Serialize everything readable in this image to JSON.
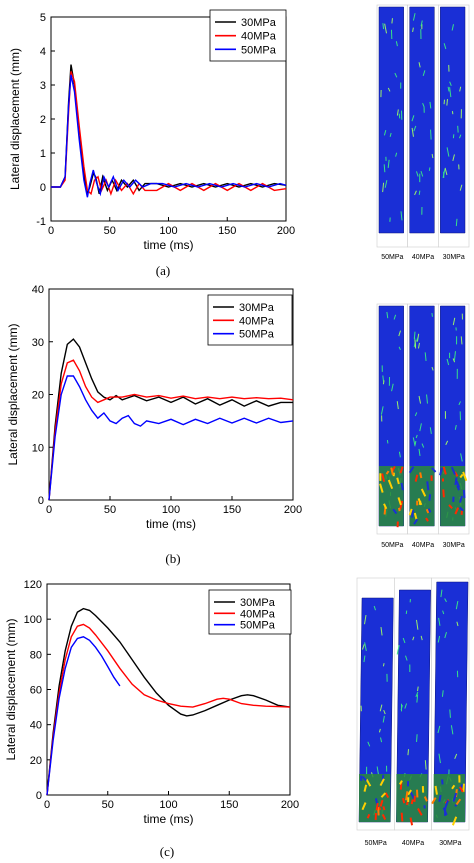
{
  "chart_data": [
    {
      "type": "line",
      "caption": "(a)",
      "xlabel": "time (ms)",
      "ylabel": "Lateral displacement (mm)",
      "xlim": [
        0,
        200
      ],
      "ylim": [
        -1,
        5
      ],
      "xticks": [
        "0",
        "50",
        "100",
        "150",
        "200"
      ],
      "yticks": [
        "-1",
        "0",
        "1",
        "2",
        "3",
        "4",
        "5"
      ],
      "legend_position": "top-right",
      "series": [
        {
          "name": "30MPa",
          "color": "#000000",
          "x": [
            0,
            8,
            12,
            15,
            17,
            20,
            24,
            28,
            31,
            33,
            36,
            38,
            41,
            44,
            48,
            52,
            56,
            60,
            65,
            70,
            75,
            80,
            90,
            100,
            110,
            120,
            130,
            140,
            150,
            160,
            170,
            180,
            190,
            200
          ],
          "y": [
            0,
            0,
            0.3,
            2.5,
            3.6,
            3.0,
            1.5,
            0.4,
            -0.2,
            0.0,
            0.4,
            0.3,
            -0.2,
            0.3,
            -0.1,
            0.2,
            -0.1,
            0.2,
            0.0,
            0.2,
            -0.1,
            0.1,
            0.1,
            0.0,
            0.1,
            0.0,
            0.1,
            0.0,
            0.1,
            0.0,
            0.1,
            0.0,
            0.1,
            0.05
          ]
        },
        {
          "name": "40MPa",
          "color": "#ff0000",
          "x": [
            0,
            8,
            12,
            15,
            17,
            20,
            24,
            28,
            31,
            34,
            37,
            40,
            43,
            47,
            51,
            55,
            60,
            65,
            70,
            75,
            80,
            90,
            100,
            110,
            120,
            130,
            140,
            150,
            160,
            170,
            180,
            190,
            200
          ],
          "y": [
            0,
            0,
            0.2,
            2.2,
            3.4,
            3.1,
            1.8,
            0.6,
            -0.1,
            -0.2,
            0.2,
            0.3,
            -0.1,
            0.2,
            -0.2,
            0.2,
            -0.1,
            0.1,
            -0.2,
            0.1,
            -0.1,
            -0.1,
            0.1,
            -0.1,
            0.1,
            -0.1,
            0.1,
            -0.1,
            0.1,
            -0.1,
            0.1,
            -0.1,
            -0.05
          ]
        },
        {
          "name": "50MPa",
          "color": "#0000ff",
          "x": [
            0,
            8,
            12,
            15,
            17,
            20,
            24,
            28,
            31,
            33,
            36,
            39,
            42,
            45,
            49,
            53,
            57,
            62,
            67,
            72,
            78,
            85,
            95,
            105,
            115,
            125,
            135,
            145,
            155,
            165,
            175,
            185,
            195,
            200
          ],
          "y": [
            0,
            0,
            0.3,
            2.4,
            3.3,
            2.8,
            1.4,
            0.2,
            -0.3,
            0.1,
            0.5,
            0.1,
            -0.2,
            0.3,
            0.0,
            0.3,
            -0.1,
            0.2,
            0.0,
            0.2,
            0.0,
            0.1,
            0.1,
            0.0,
            0.1,
            0.0,
            0.1,
            0.0,
            0.1,
            0.0,
            0.1,
            0.0,
            0.1,
            0.05
          ]
        }
      ],
      "sim_labels": [
        "50MPa",
        "40MPa",
        "30MPa"
      ]
    },
    {
      "type": "line",
      "caption": "(b)",
      "xlabel": "time (ms)",
      "ylabel": "Lateral displacement (mm)",
      "xlim": [
        0,
        200
      ],
      "ylim": [
        0,
        40
      ],
      "xticks": [
        "0",
        "50",
        "100",
        "150",
        "200"
      ],
      "yticks": [
        "0",
        "10",
        "20",
        "30",
        "40"
      ],
      "legend_position": "top-right",
      "series": [
        {
          "name": "30MPa",
          "color": "#000000",
          "x": [
            0,
            5,
            10,
            15,
            20,
            25,
            30,
            35,
            40,
            45,
            50,
            55,
            60,
            70,
            80,
            90,
            100,
            110,
            120,
            130,
            140,
            150,
            160,
            170,
            180,
            190,
            200
          ],
          "y": [
            0,
            14,
            24,
            29.5,
            30.5,
            29,
            26,
            23,
            20.5,
            19.5,
            19,
            19.8,
            19,
            19.8,
            18.8,
            19.5,
            18.5,
            19.5,
            18.2,
            19.2,
            18,
            19,
            17.8,
            18.8,
            17.8,
            18.5,
            18.5
          ]
        },
        {
          "name": "40MPa",
          "color": "#ff0000",
          "x": [
            0,
            5,
            10,
            15,
            20,
            25,
            30,
            35,
            40,
            45,
            50,
            60,
            70,
            80,
            90,
            100,
            110,
            120,
            130,
            140,
            150,
            160,
            170,
            180,
            190,
            200
          ],
          "y": [
            0,
            13,
            22,
            26,
            26.5,
            24.5,
            21.5,
            19.5,
            18.5,
            19,
            19.5,
            19.5,
            20,
            19.5,
            19.8,
            19.3,
            19.7,
            19.2,
            19.5,
            19.2,
            19.5,
            19.2,
            19.4,
            19.2,
            19.3,
            19
          ]
        },
        {
          "name": "50MPa",
          "color": "#0000ff",
          "x": [
            0,
            5,
            10,
            15,
            20,
            25,
            30,
            35,
            40,
            45,
            50,
            55,
            60,
            65,
            70,
            75,
            80,
            90,
            100,
            110,
            120,
            130,
            140,
            150,
            160,
            170,
            180,
            190,
            200
          ],
          "y": [
            0,
            12,
            20,
            23.5,
            23.5,
            21.5,
            19,
            17,
            15.5,
            16.5,
            15,
            14.5,
            15.5,
            16,
            14.5,
            14,
            15,
            14.5,
            15.3,
            14.3,
            15.3,
            14.5,
            15.5,
            14.6,
            15.5,
            14.6,
            15.5,
            14.7,
            15
          ]
        }
      ],
      "sim_labels": [
        "50MPa",
        "40MPa",
        "30MPa"
      ]
    },
    {
      "type": "line",
      "caption": "(c)",
      "xlabel": "time (ms)",
      "ylabel": "Lateral displacement (mm)",
      "xlim": [
        0,
        200
      ],
      "ylim": [
        0,
        120
      ],
      "xticks": [
        "0",
        "50",
        "100",
        "150",
        "200"
      ],
      "yticks": [
        "0",
        "20",
        "40",
        "60",
        "80",
        "100",
        "120"
      ],
      "legend_position": "top-right",
      "series": [
        {
          "name": "30MPa",
          "color": "#000000",
          "x": [
            0,
            5,
            10,
            15,
            20,
            25,
            30,
            35,
            40,
            50,
            60,
            70,
            80,
            90,
            100,
            110,
            115,
            120,
            130,
            140,
            150,
            160,
            165,
            170,
            180,
            190,
            200
          ],
          "y": [
            0,
            35,
            62,
            82,
            96,
            104,
            106,
            105,
            102,
            95,
            87,
            77,
            67,
            58,
            51,
            46,
            45,
            45.5,
            48,
            51,
            54,
            56.5,
            57,
            56.5,
            54,
            51,
            50
          ]
        },
        {
          "name": "40MPa",
          "color": "#ff0000",
          "x": [
            0,
            5,
            10,
            15,
            20,
            25,
            30,
            35,
            40,
            50,
            60,
            70,
            80,
            90,
            100,
            110,
            120,
            130,
            140,
            145,
            150,
            160,
            170,
            180,
            190,
            200
          ],
          "y": [
            0,
            33,
            58,
            77,
            90,
            96,
            97,
            95,
            91,
            82,
            72,
            63,
            57,
            54,
            52,
            50.5,
            50,
            52,
            54.5,
            55,
            54.5,
            52,
            51,
            50.5,
            50.3,
            50
          ]
        },
        {
          "name": "50MPa",
          "color": "#0000ff",
          "x": [
            0,
            5,
            10,
            15,
            20,
            25,
            30,
            35,
            40,
            45,
            50,
            55,
            60
          ],
          "y": [
            0,
            31,
            55,
            72,
            84,
            89,
            90,
            88,
            84,
            79,
            73,
            67,
            62
          ]
        }
      ],
      "sim_labels": [
        "50MPa",
        "40MPa",
        "30MPa"
      ]
    }
  ]
}
